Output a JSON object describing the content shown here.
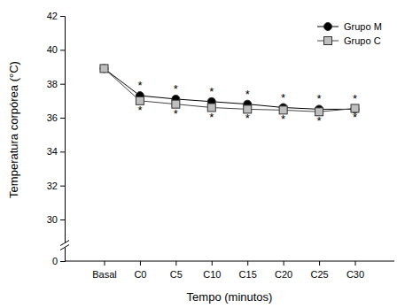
{
  "chart_data": {
    "type": "line",
    "x_label": "Tempo (minutos)",
    "y_label": "Temperatura corpórea (°C)",
    "categories": [
      "Basal",
      "C0",
      "C5",
      "C10",
      "C15",
      "C20",
      "C25",
      "C30"
    ],
    "series": [
      {
        "name": "Grupo M",
        "color": "#000000",
        "marker": "circle",
        "values": [
          38.9,
          37.3,
          37.1,
          36.95,
          36.8,
          36.6,
          36.5,
          36.5
        ],
        "annotations": [
          null,
          "*",
          "*",
          "*",
          "*",
          "*",
          "*",
          "*"
        ]
      },
      {
        "name": "Grupo C",
        "color": "#bfbfbf",
        "marker": "square",
        "values": [
          38.9,
          37.0,
          36.8,
          36.6,
          36.5,
          36.45,
          36.35,
          36.55
        ],
        "annotations": [
          null,
          "*",
          "*",
          "*",
          "*",
          "*",
          "*",
          "*"
        ]
      }
    ],
    "ylim": [
      0,
      42
    ],
    "yticks": [
      0,
      30,
      32,
      34,
      36,
      38,
      40,
      42
    ],
    "legend": "upper right"
  }
}
